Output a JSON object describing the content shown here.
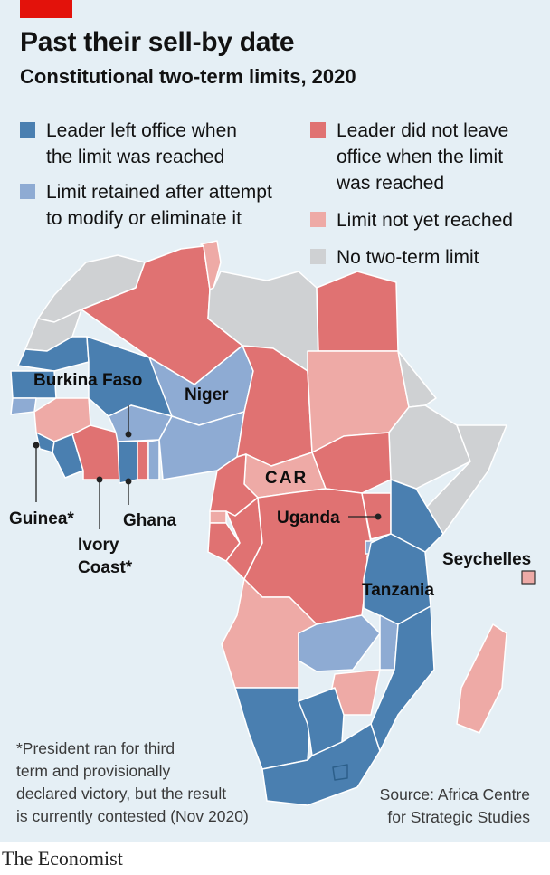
{
  "header": {
    "title": "Past their sell-by date",
    "subtitle": "Constitutional two-term limits, 2020"
  },
  "colors": {
    "background": "#e5eff5",
    "accent_red": "#e3120b",
    "left_office": "#4a7fb0",
    "limit_retained": "#8eabd3",
    "did_not_leave": "#e07272",
    "not_yet_reached": "#eeaaa6",
    "no_limit": "#cfd1d3"
  },
  "legend": [
    {
      "key": "left_office",
      "label": "Leader left office when\nthe limit was reached"
    },
    {
      "key": "limit_retained",
      "label": "Limit retained after attempt\nto modify or eliminate it"
    },
    {
      "key": "did_not_leave",
      "label": "Leader did not leave\noffice when the limit\nwas reached"
    },
    {
      "key": "not_yet_reached",
      "label": "Limit not yet reached"
    },
    {
      "key": "no_limit",
      "label": "No two-term limit"
    }
  ],
  "map_labels": {
    "burkina_faso": "Burkina Faso",
    "niger": "Niger",
    "car": "CAR",
    "uganda": "Uganda",
    "tanzania": "Tanzania",
    "seychelles": "Seychelles",
    "guinea": "Guinea*",
    "ghana": "Ghana",
    "ivory_coast": "Ivory\nCoast*"
  },
  "footnote": "*President ran for third\nterm and provisionally\ndeclared victory, but the result\nis currently contested (Nov 2020)",
  "source": "Source: Africa Centre\nfor Strategic Studies",
  "publisher": "The Economist"
}
